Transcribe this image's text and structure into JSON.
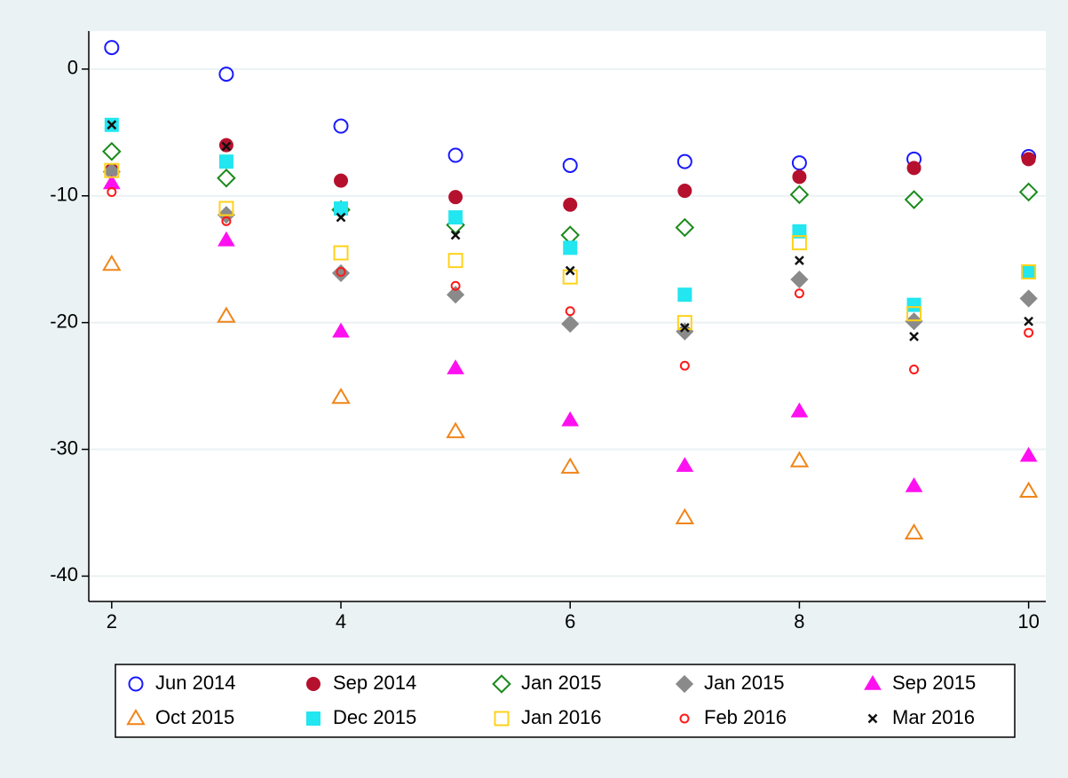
{
  "chart_data": {
    "type": "scatter",
    "x": [
      2,
      3,
      4,
      5,
      6,
      7,
      8,
      9,
      10
    ],
    "xlim": [
      1.8,
      10.15
    ],
    "xticks": [
      2,
      4,
      6,
      8,
      10
    ],
    "ylim": [
      -42,
      3
    ],
    "yticks": [
      0,
      -10,
      -20,
      -30,
      -40
    ],
    "grid": true,
    "legend": "bottom",
    "series": [
      {
        "name": "Jun 2014",
        "color": "#1a1aff",
        "marker": "circle",
        "filled": false,
        "size": "large",
        "values": [
          1.7,
          -0.4,
          -4.5,
          -6.8,
          -7.6,
          -7.3,
          -7.4,
          -7.1,
          -6.9
        ]
      },
      {
        "name": "Sep 2014",
        "color": "#b5112e",
        "marker": "circle",
        "filled": true,
        "size": "large",
        "values": [
          -8.0,
          -6.0,
          -8.8,
          -10.1,
          -10.7,
          -9.6,
          -8.5,
          -7.8,
          -7.1
        ]
      },
      {
        "name": "Jan 2015",
        "color": "#1a8a1a",
        "marker": "diamond",
        "filled": false,
        "size": "large",
        "values": [
          -6.5,
          -8.6,
          -11.1,
          -12.3,
          -13.1,
          -12.5,
          -9.9,
          -10.3,
          -9.7
        ]
      },
      {
        "name": "Jan 2015",
        "color": "#8a8a8a",
        "marker": "diamond",
        "filled": true,
        "size": "large",
        "values": [
          -8.1,
          -11.5,
          -16.1,
          -17.8,
          -20.1,
          -20.7,
          -16.6,
          -19.9,
          -18.1
        ]
      },
      {
        "name": "Sep 2015",
        "color": "#ff10f0",
        "marker": "triangle",
        "filled": true,
        "size": "large",
        "values": [
          -9.0,
          -13.5,
          -20.7,
          -23.6,
          -27.7,
          -31.3,
          -27.0,
          -32.9,
          -30.5
        ]
      },
      {
        "name": "Oct 2015",
        "color": "#f08519",
        "marker": "triangle",
        "filled": false,
        "size": "large",
        "values": [
          -15.4,
          -19.5,
          -25.9,
          -28.6,
          -31.4,
          -35.4,
          -30.9,
          -36.6,
          -33.3
        ]
      },
      {
        "name": "Dec 2015",
        "color": "#22e6f0",
        "marker": "square",
        "filled": true,
        "size": "large",
        "values": [
          -4.4,
          -7.3,
          -11.0,
          -11.7,
          -14.1,
          -17.8,
          -12.8,
          -18.6,
          -16.0
        ]
      },
      {
        "name": "Jan 2016",
        "color": "#ffd21a",
        "marker": "square",
        "filled": false,
        "size": "large",
        "values": [
          -8.0,
          -11.0,
          -14.5,
          -15.1,
          -16.4,
          -20.0,
          -13.7,
          -19.3,
          -16.0
        ]
      },
      {
        "name": "Feb 2016",
        "color": "#ff1a1a",
        "marker": "circle",
        "filled": false,
        "size": "small",
        "values": [
          -9.7,
          -12.0,
          -16.0,
          -17.1,
          -19.1,
          -23.4,
          -17.7,
          -23.7,
          -20.8
        ]
      },
      {
        "name": "Mar 2016",
        "color": "#111111",
        "marker": "x",
        "filled": false,
        "size": "small",
        "values": [
          -4.4,
          -6.1,
          -11.7,
          -13.1,
          -15.9,
          -20.4,
          -15.1,
          -21.1,
          -19.9
        ]
      }
    ]
  }
}
